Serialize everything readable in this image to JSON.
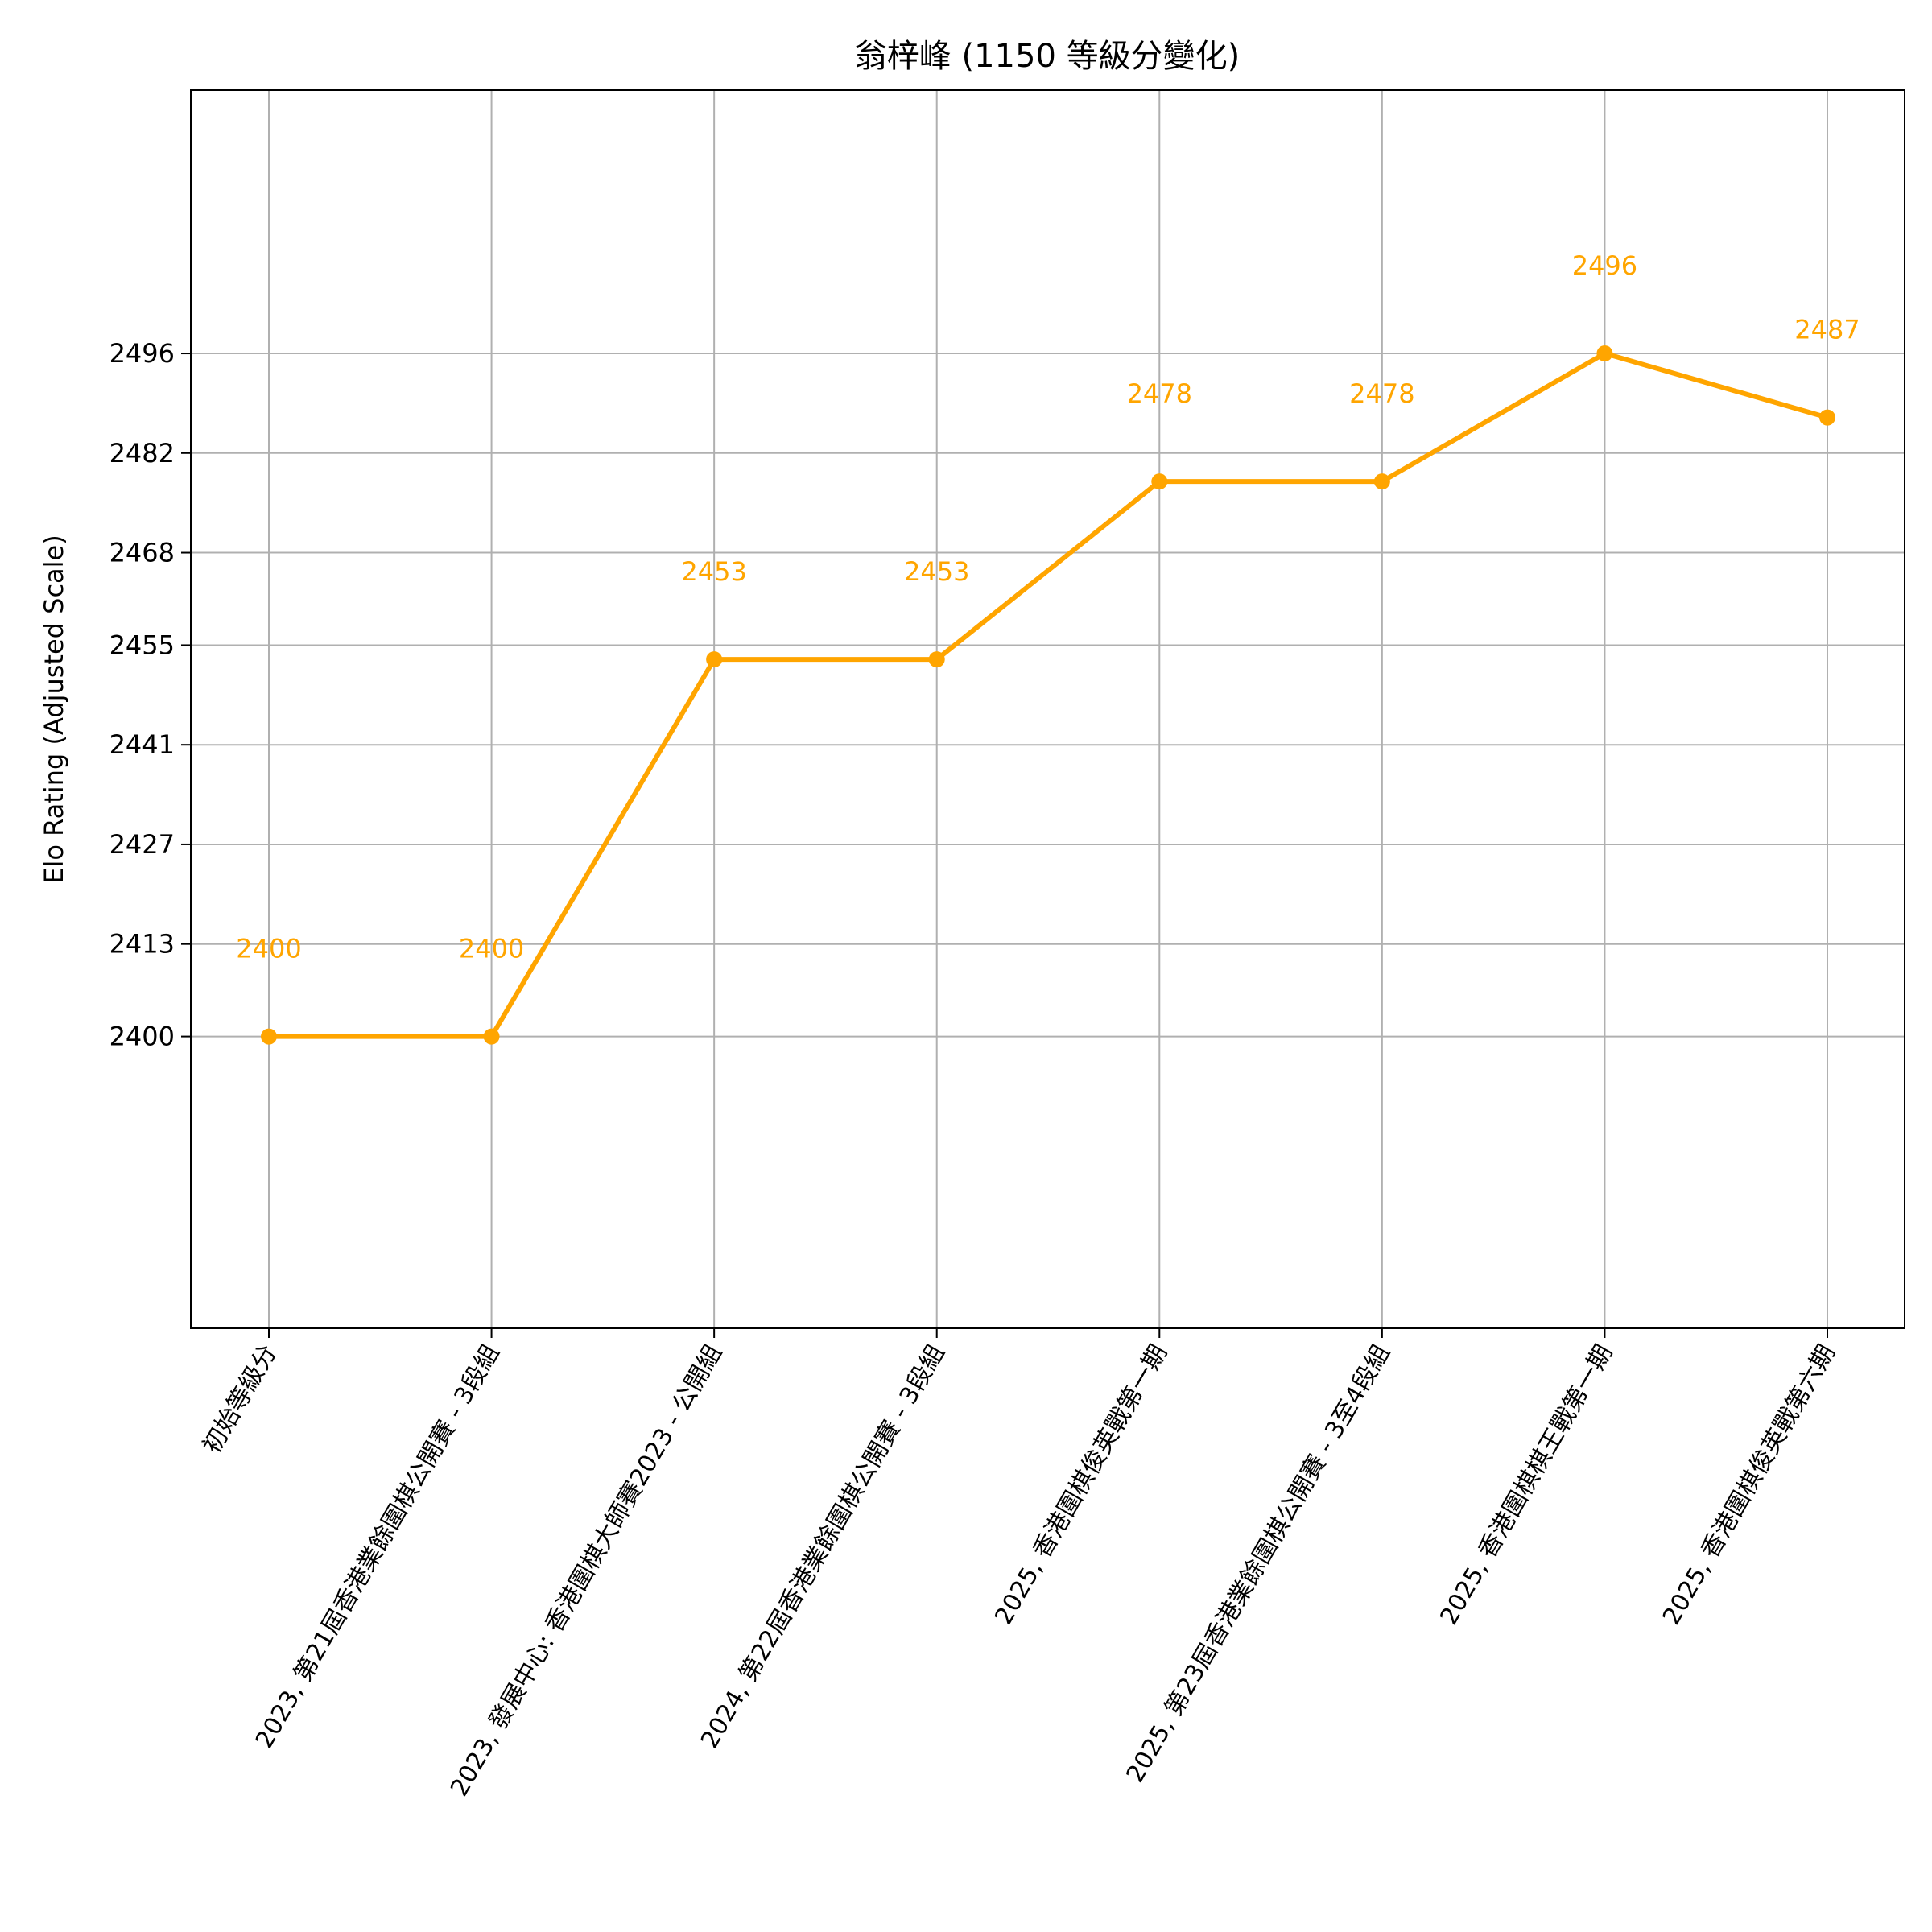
{
  "chart_data": {
    "type": "line",
    "title": "翁梓峰 (1150 等級分變化)",
    "xlabel": "",
    "ylabel": "Elo Rating (Adjusted Scale)",
    "categories": [
      "初始等級分",
      "2023, 第21屆香港業餘圍棋公開賽 - 3段組",
      "2023, 發展中心: 香港圍棋大師賽2023 - 公開組",
      "2024, 第22屆香港業餘圍棋公開賽 - 3段組",
      "2025, 香港圍棋俊英戰第一期",
      "2025, 第23屆香港業餘圍棋公開賽 - 3至4段組",
      "2025, 香港圍棋棋王戰第一期",
      "2025, 香港圍棋俊英戰第六期"
    ],
    "series": [
      {
        "values": [
          2400,
          2400,
          2453,
          2453,
          2478,
          2478,
          2496,
          2487
        ],
        "labels": [
          "2400",
          "2400",
          "2453",
          "2453",
          "2478",
          "2478",
          "2496",
          "2487"
        ],
        "color": "#FFA500"
      }
    ],
    "yticks": [
      2400,
      2413,
      2427,
      2441,
      2455,
      2468,
      2482,
      2496
    ],
    "ytick_labels": [
      "2400",
      "2413",
      "2427",
      "2441",
      "2455",
      "2468",
      "2482",
      "2496"
    ],
    "ylim": [
      2359,
      2533
    ],
    "grid": true,
    "legend": "none"
  }
}
